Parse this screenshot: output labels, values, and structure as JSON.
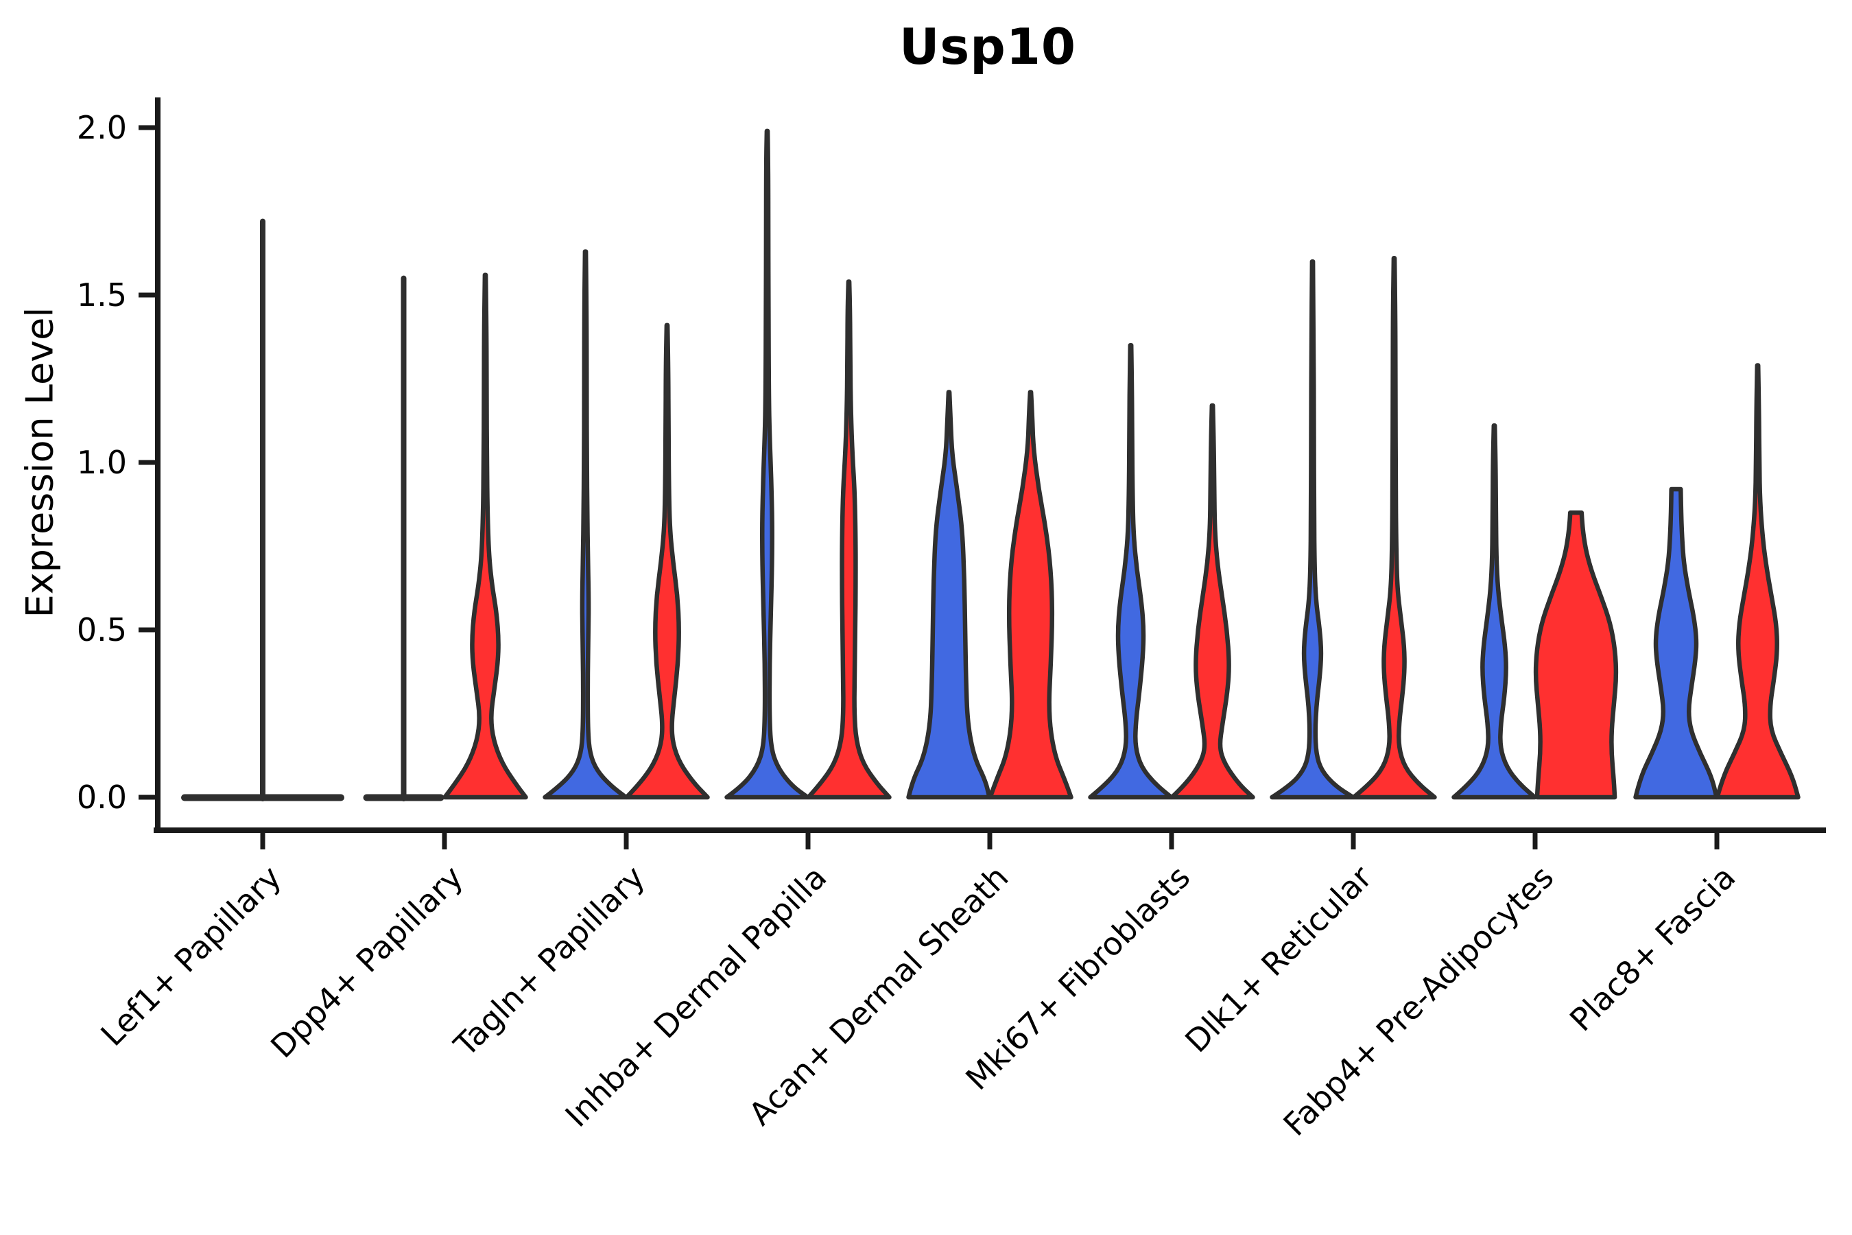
{
  "chart_data": {
    "type": "violin",
    "title": "Usp10",
    "ylabel": "Expression Level",
    "xlabel": "",
    "ylim": [
      -0.06,
      2.09
    ],
    "yticks": [
      0.0,
      0.5,
      1.0,
      1.5,
      2.0
    ],
    "ytick_labels": [
      "0.0",
      "0.5",
      "1.0",
      "1.5",
      "2.0"
    ],
    "grid": "off",
    "legend": "none",
    "xtick_rotation": 45,
    "categories": [
      "Lef1+ Papillary",
      "Dpp4+ Papillary",
      "Tagln+ Papillary",
      "Inhba+ Dermal Papilla",
      "Acan+ Dermal Sheath",
      "Mki67+ Fibroblasts",
      "Dlk1+ Reticular",
      "Fabp4+ Pre-Adipocytes",
      "Plac8+ Fascia"
    ],
    "groups": [
      {
        "key": "blue",
        "position": "left"
      },
      {
        "key": "red",
        "position": "right"
      }
    ],
    "colors": {
      "blue": "#4169E1",
      "red": "#FF3030",
      "outline": "#2F2F2F",
      "axis": "#1A1A1A"
    },
    "max_expression": {
      "blue": [
        1.72,
        1.55,
        1.63,
        1.99,
        1.21,
        1.35,
        1.6,
        1.11,
        0.92
      ],
      "red": [
        null,
        1.56,
        1.41,
        1.54,
        1.21,
        1.17,
        1.61,
        0.85,
        1.29
      ]
    },
    "violins": [
      {
        "category": "Lef1+ Papillary",
        "single": true,
        "blue": {
          "flat": true,
          "spike_max": 1.72,
          "span": "full"
        },
        "red": null
      },
      {
        "category": "Dpp4+ Papillary",
        "blue": {
          "flat": true,
          "spike_max": 1.55
        },
        "red": {
          "max": 1.56,
          "profile": [
            [
              0,
              1.0
            ],
            [
              0.04,
              0.75
            ],
            [
              0.1,
              0.42
            ],
            [
              0.17,
              0.2
            ],
            [
              0.24,
              0.13
            ],
            [
              0.32,
              0.22
            ],
            [
              0.4,
              0.31
            ],
            [
              0.47,
              0.33
            ],
            [
              0.55,
              0.28
            ],
            [
              0.63,
              0.17
            ],
            [
              0.72,
              0.09
            ],
            [
              0.85,
              0.055
            ],
            [
              1.0,
              0.04
            ],
            [
              1.2,
              0.032
            ],
            [
              1.4,
              0.028
            ],
            [
              1.56,
              0.01
            ]
          ]
        }
      },
      {
        "category": "Tagln+ Papillary",
        "blue": {
          "max": 1.63,
          "profile": [
            [
              0,
              1.0
            ],
            [
              0.035,
              0.62
            ],
            [
              0.08,
              0.28
            ],
            [
              0.13,
              0.11
            ],
            [
              0.2,
              0.06
            ],
            [
              0.35,
              0.055
            ],
            [
              0.5,
              0.075
            ],
            [
              0.6,
              0.08
            ],
            [
              0.72,
              0.06
            ],
            [
              0.85,
              0.045
            ],
            [
              1.0,
              0.035
            ],
            [
              1.2,
              0.03
            ],
            [
              1.45,
              0.027
            ],
            [
              1.63,
              0.01
            ]
          ]
        },
        "red": {
          "max": 1.41,
          "profile": [
            [
              0,
              1.0
            ],
            [
              0.04,
              0.68
            ],
            [
              0.1,
              0.32
            ],
            [
              0.16,
              0.14
            ],
            [
              0.22,
              0.11
            ],
            [
              0.3,
              0.18
            ],
            [
              0.4,
              0.27
            ],
            [
              0.5,
              0.3
            ],
            [
              0.6,
              0.26
            ],
            [
              0.7,
              0.15
            ],
            [
              0.8,
              0.07
            ],
            [
              0.92,
              0.045
            ],
            [
              1.1,
              0.035
            ],
            [
              1.28,
              0.03
            ],
            [
              1.41,
              0.01
            ]
          ]
        }
      },
      {
        "category": "Inhba+ Dermal Papilla",
        "blue": {
          "max": 1.99,
          "profile": [
            [
              0,
              1.0
            ],
            [
              0.035,
              0.6
            ],
            [
              0.09,
              0.25
            ],
            [
              0.15,
              0.09
            ],
            [
              0.25,
              0.055
            ],
            [
              0.4,
              0.06
            ],
            [
              0.55,
              0.09
            ],
            [
              0.7,
              0.12
            ],
            [
              0.82,
              0.125
            ],
            [
              0.95,
              0.1
            ],
            [
              1.08,
              0.06
            ],
            [
              1.2,
              0.04
            ],
            [
              1.45,
              0.03
            ],
            [
              1.7,
              0.027
            ],
            [
              1.9,
              0.024
            ],
            [
              1.99,
              0.01
            ]
          ]
        },
        "red": {
          "max": 1.54,
          "profile": [
            [
              0,
              1.0
            ],
            [
              0.04,
              0.7
            ],
            [
              0.1,
              0.35
            ],
            [
              0.17,
              0.18
            ],
            [
              0.25,
              0.135
            ],
            [
              0.35,
              0.14
            ],
            [
              0.5,
              0.16
            ],
            [
              0.65,
              0.17
            ],
            [
              0.8,
              0.165
            ],
            [
              0.92,
              0.14
            ],
            [
              1.02,
              0.09
            ],
            [
              1.15,
              0.05
            ],
            [
              1.3,
              0.035
            ],
            [
              1.45,
              0.03
            ],
            [
              1.54,
              0.01
            ]
          ]
        }
      },
      {
        "category": "Acan+ Dermal Sheath",
        "blue": {
          "max": 1.21,
          "profile": [
            [
              0,
              1.0
            ],
            [
              0.05,
              0.9
            ],
            [
              0.12,
              0.62
            ],
            [
              0.22,
              0.46
            ],
            [
              0.35,
              0.42
            ],
            [
              0.5,
              0.4
            ],
            [
              0.65,
              0.38
            ],
            [
              0.8,
              0.33
            ],
            [
              0.92,
              0.2
            ],
            [
              1.02,
              0.08
            ],
            [
              1.12,
              0.04
            ],
            [
              1.21,
              0.01
            ]
          ]
        },
        "red": {
          "max": 1.21,
          "profile": [
            [
              0,
              1.0
            ],
            [
              0.05,
              0.85
            ],
            [
              0.13,
              0.58
            ],
            [
              0.25,
              0.44
            ],
            [
              0.4,
              0.5
            ],
            [
              0.55,
              0.54
            ],
            [
              0.68,
              0.5
            ],
            [
              0.8,
              0.38
            ],
            [
              0.92,
              0.2
            ],
            [
              1.04,
              0.07
            ],
            [
              1.14,
              0.04
            ],
            [
              1.21,
              0.01
            ]
          ]
        }
      },
      {
        "category": "Mki67+ Fibroblasts",
        "blue": {
          "max": 1.35,
          "profile": [
            [
              0,
              1.0
            ],
            [
              0.04,
              0.6
            ],
            [
              0.09,
              0.26
            ],
            [
              0.15,
              0.11
            ],
            [
              0.22,
              0.12
            ],
            [
              0.32,
              0.22
            ],
            [
              0.42,
              0.3
            ],
            [
              0.5,
              0.32
            ],
            [
              0.58,
              0.27
            ],
            [
              0.68,
              0.15
            ],
            [
              0.78,
              0.07
            ],
            [
              0.9,
              0.045
            ],
            [
              1.05,
              0.035
            ],
            [
              1.2,
              0.03
            ],
            [
              1.35,
              0.012
            ]
          ]
        },
        "red": {
          "max": 1.17,
          "profile": [
            [
              0,
              1.0
            ],
            [
              0.04,
              0.65
            ],
            [
              0.1,
              0.3
            ],
            [
              0.15,
              0.17
            ],
            [
              0.22,
              0.25
            ],
            [
              0.32,
              0.38
            ],
            [
              0.4,
              0.42
            ],
            [
              0.5,
              0.36
            ],
            [
              0.6,
              0.24
            ],
            [
              0.7,
              0.12
            ],
            [
              0.8,
              0.06
            ],
            [
              0.92,
              0.045
            ],
            [
              1.05,
              0.035
            ],
            [
              1.17,
              0.012
            ]
          ]
        }
      },
      {
        "category": "Dlk1+ Reticular",
        "blue": {
          "max": 1.6,
          "profile": [
            [
              0,
              1.0
            ],
            [
              0.035,
              0.55
            ],
            [
              0.08,
              0.22
            ],
            [
              0.13,
              0.09
            ],
            [
              0.2,
              0.065
            ],
            [
              0.28,
              0.1
            ],
            [
              0.36,
              0.18
            ],
            [
              0.43,
              0.22
            ],
            [
              0.5,
              0.18
            ],
            [
              0.58,
              0.09
            ],
            [
              0.68,
              0.05
            ],
            [
              0.85,
              0.038
            ],
            [
              1.1,
              0.032
            ],
            [
              1.35,
              0.028
            ],
            [
              1.6,
              0.01
            ]
          ]
        },
        "red": {
          "max": 1.61,
          "profile": [
            [
              0,
              1.0
            ],
            [
              0.04,
              0.6
            ],
            [
              0.09,
              0.26
            ],
            [
              0.15,
              0.11
            ],
            [
              0.22,
              0.12
            ],
            [
              0.3,
              0.2
            ],
            [
              0.38,
              0.26
            ],
            [
              0.45,
              0.25
            ],
            [
              0.53,
              0.17
            ],
            [
              0.62,
              0.08
            ],
            [
              0.75,
              0.05
            ],
            [
              0.95,
              0.038
            ],
            [
              1.2,
              0.032
            ],
            [
              1.45,
              0.028
            ],
            [
              1.61,
              0.01
            ]
          ]
        }
      },
      {
        "category": "Fabp4+ Pre-Adipocytes",
        "blue": {
          "max": 1.11,
          "profile": [
            [
              0,
              1.0
            ],
            [
              0.04,
              0.62
            ],
            [
              0.09,
              0.3
            ],
            [
              0.15,
              0.14
            ],
            [
              0.22,
              0.16
            ],
            [
              0.3,
              0.25
            ],
            [
              0.38,
              0.3
            ],
            [
              0.45,
              0.27
            ],
            [
              0.53,
              0.18
            ],
            [
              0.62,
              0.09
            ],
            [
              0.72,
              0.05
            ],
            [
              0.85,
              0.04
            ],
            [
              1.0,
              0.032
            ],
            [
              1.11,
              0.012
            ]
          ]
        },
        "red": {
          "max": 0.85,
          "blunt": true,
          "profile": [
            [
              0,
              0.96
            ],
            [
              0.06,
              0.93
            ],
            [
              0.13,
              0.88
            ],
            [
              0.2,
              0.88
            ],
            [
              0.28,
              0.94
            ],
            [
              0.36,
              1.0
            ],
            [
              0.44,
              0.97
            ],
            [
              0.52,
              0.85
            ],
            [
              0.6,
              0.62
            ],
            [
              0.67,
              0.4
            ],
            [
              0.73,
              0.26
            ],
            [
              0.78,
              0.19
            ],
            [
              0.82,
              0.155
            ],
            [
              0.85,
              0.14
            ]
          ]
        }
      },
      {
        "category": "Plac8+ Fascia",
        "blue": {
          "max": 0.92,
          "blunt": true,
          "profile": [
            [
              0,
              1.0
            ],
            [
              0.06,
              0.88
            ],
            [
              0.13,
              0.6
            ],
            [
              0.2,
              0.36
            ],
            [
              0.26,
              0.3
            ],
            [
              0.33,
              0.38
            ],
            [
              0.41,
              0.48
            ],
            [
              0.47,
              0.51
            ],
            [
              0.54,
              0.44
            ],
            [
              0.62,
              0.3
            ],
            [
              0.7,
              0.19
            ],
            [
              0.78,
              0.145
            ],
            [
              0.85,
              0.125
            ],
            [
              0.92,
              0.115
            ]
          ]
        },
        "red": {
          "max": 1.29,
          "profile": [
            [
              0,
              1.0
            ],
            [
              0.06,
              0.86
            ],
            [
              0.13,
              0.58
            ],
            [
              0.2,
              0.32
            ],
            [
              0.27,
              0.3
            ],
            [
              0.35,
              0.4
            ],
            [
              0.44,
              0.49
            ],
            [
              0.52,
              0.46
            ],
            [
              0.6,
              0.34
            ],
            [
              0.7,
              0.2
            ],
            [
              0.78,
              0.12
            ],
            [
              0.88,
              0.06
            ],
            [
              1.0,
              0.04
            ],
            [
              1.15,
              0.032
            ],
            [
              1.29,
              0.012
            ]
          ]
        }
      }
    ]
  }
}
